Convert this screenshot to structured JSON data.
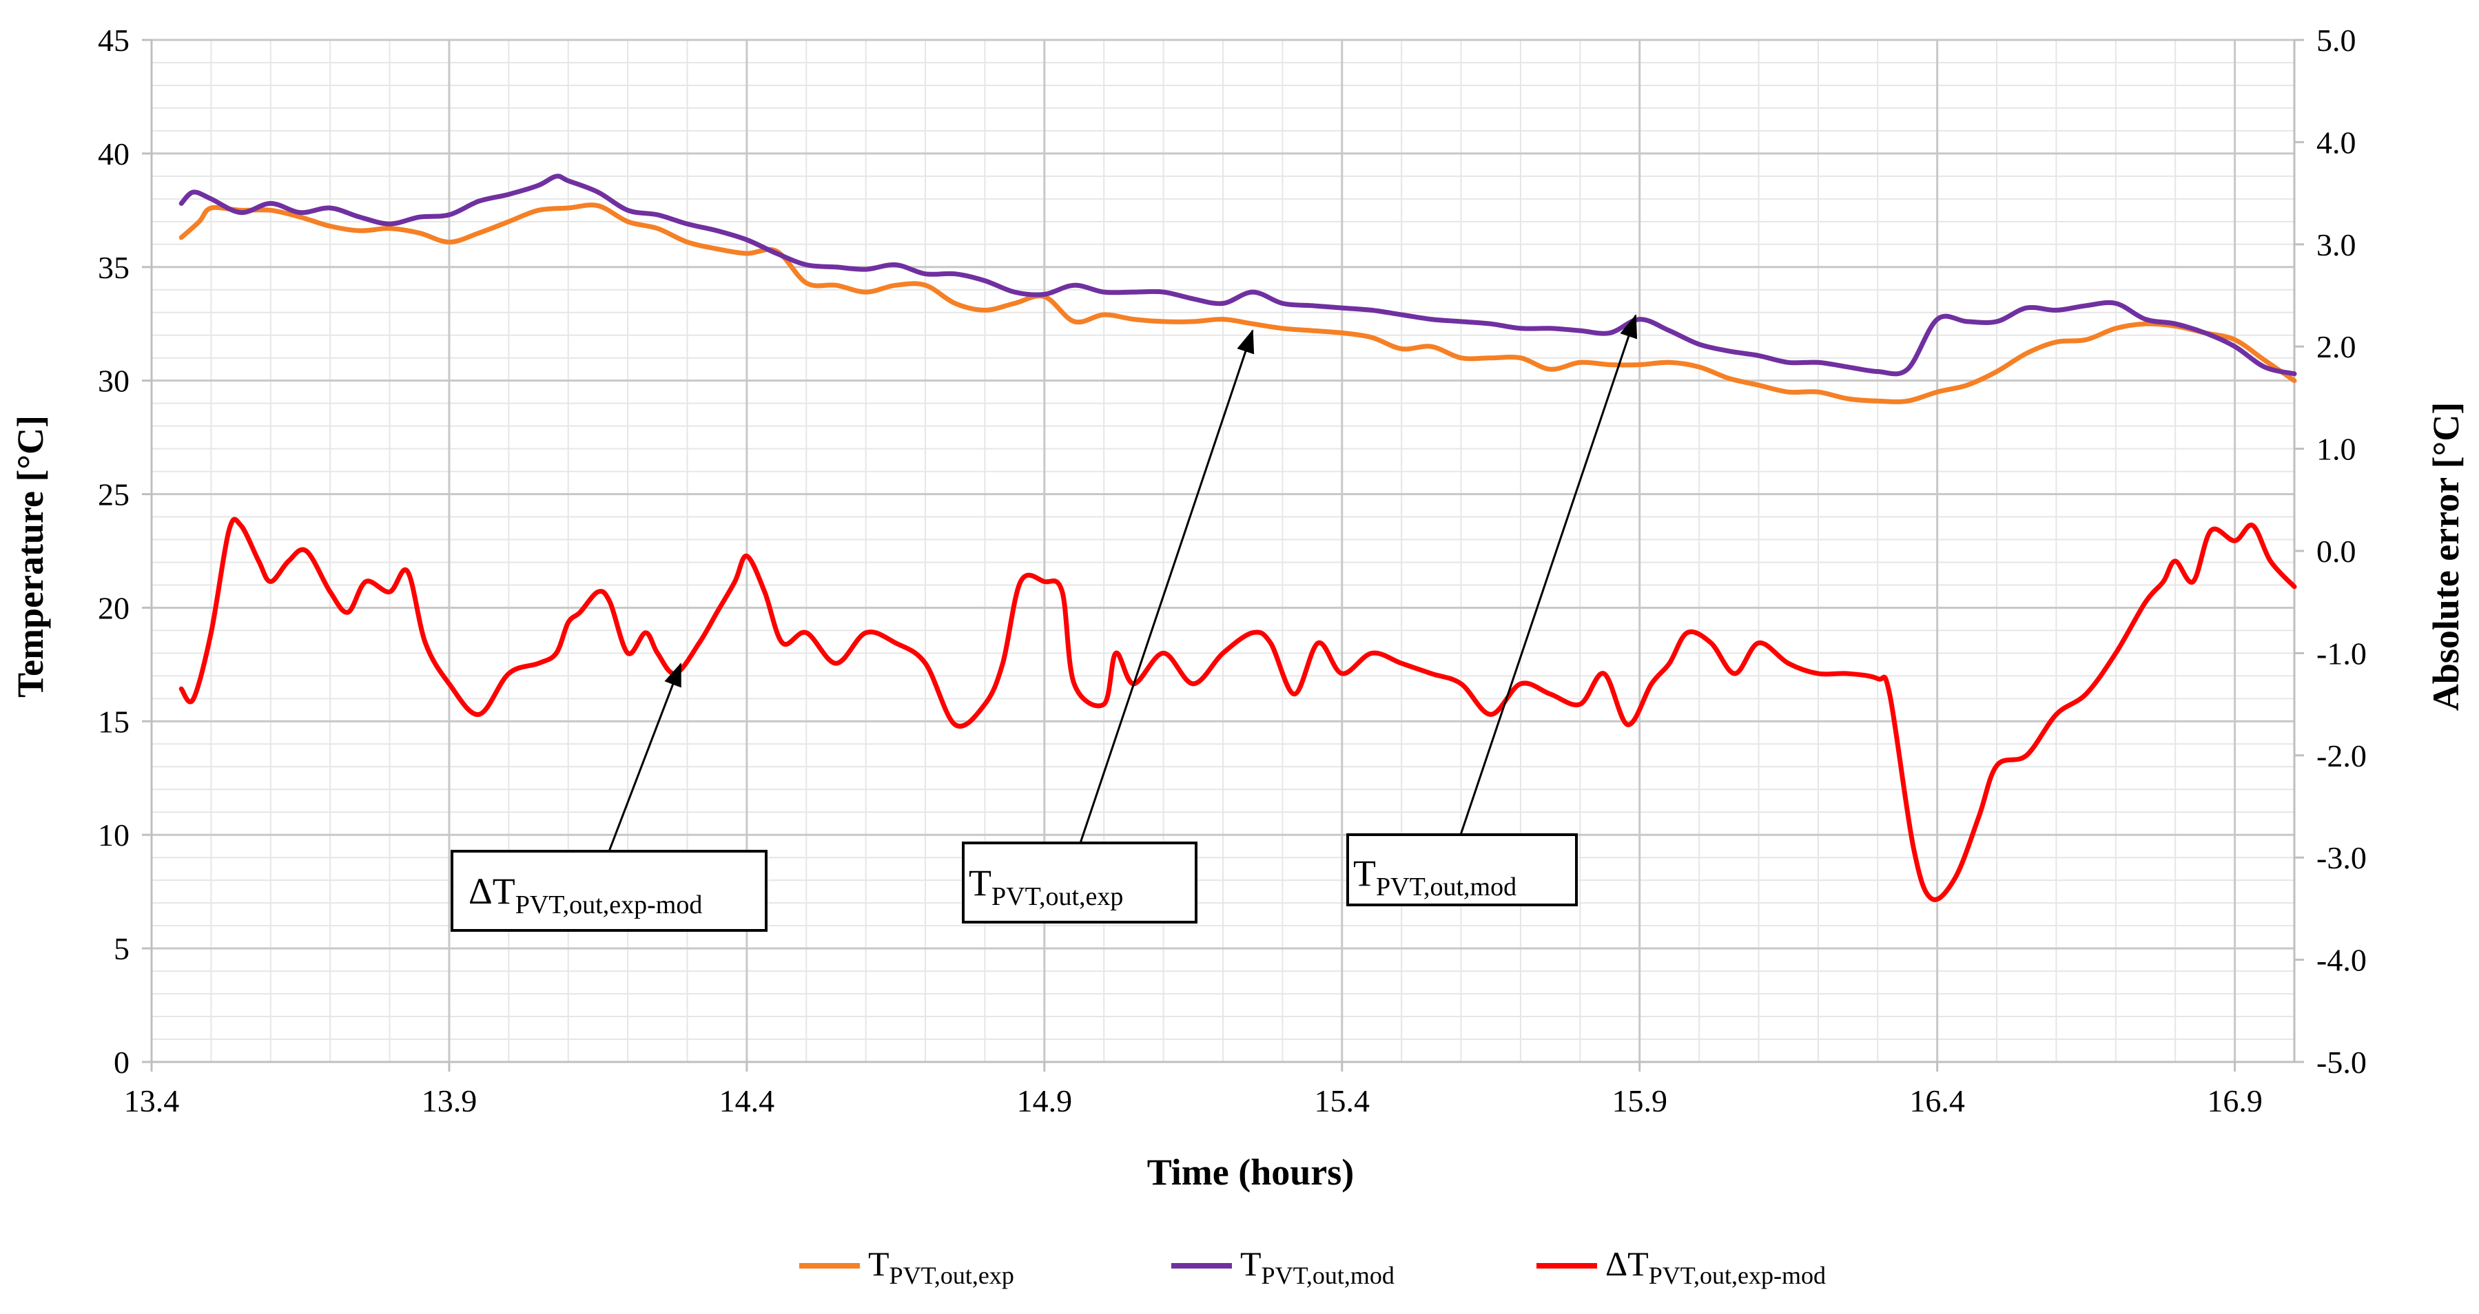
{
  "chart_data": {
    "type": "line",
    "title": "",
    "xlabel": "Time (hours)",
    "ylabel_left": "Temperature [°C]",
    "ylabel_right": "Absolute error [°C]",
    "xlim": [
      13.4,
      17.0
    ],
    "ylim_left": [
      0,
      45
    ],
    "ylim_right": [
      -5.0,
      5.0
    ],
    "x_ticks": [
      "13.4",
      "13.9",
      "14.4",
      "14.9",
      "15.4",
      "15.9",
      "16.4",
      "16.9"
    ],
    "y_left_ticks": [
      "0",
      "5",
      "10",
      "15",
      "20",
      "25",
      "30",
      "35",
      "40",
      "45"
    ],
    "y_right_ticks": [
      "-5.0",
      "-4.0",
      "-3.0",
      "-2.0",
      "-1.0",
      "0.0",
      "1.0",
      "2.0",
      "3.0",
      "4.0",
      "5.0"
    ],
    "grid": true,
    "legend_position": "bottom",
    "series": [
      {
        "id": "exp",
        "legend_main": "T",
        "legend_sub": "PVT,out,exp",
        "color": "#F58025",
        "axis": "left",
        "points": [
          [
            13.45,
            36.3
          ],
          [
            13.48,
            37.0
          ],
          [
            13.5,
            37.6
          ],
          [
            13.55,
            37.5
          ],
          [
            13.6,
            37.5
          ],
          [
            13.65,
            37.2
          ],
          [
            13.7,
            36.8
          ],
          [
            13.75,
            36.6
          ],
          [
            13.8,
            36.7
          ],
          [
            13.85,
            36.5
          ],
          [
            13.9,
            36.1
          ],
          [
            13.95,
            36.5
          ],
          [
            14.0,
            37.0
          ],
          [
            14.05,
            37.5
          ],
          [
            14.1,
            37.6
          ],
          [
            14.15,
            37.7
          ],
          [
            14.2,
            37.0
          ],
          [
            14.25,
            36.7
          ],
          [
            14.3,
            36.1
          ],
          [
            14.35,
            35.8
          ],
          [
            14.4,
            35.6
          ],
          [
            14.45,
            35.7
          ],
          [
            14.5,
            34.3
          ],
          [
            14.55,
            34.2
          ],
          [
            14.6,
            33.9
          ],
          [
            14.65,
            34.2
          ],
          [
            14.7,
            34.2
          ],
          [
            14.75,
            33.4
          ],
          [
            14.8,
            33.1
          ],
          [
            14.85,
            33.4
          ],
          [
            14.9,
            33.7
          ],
          [
            14.95,
            32.6
          ],
          [
            15.0,
            32.9
          ],
          [
            15.05,
            32.7
          ],
          [
            15.1,
            32.6
          ],
          [
            15.15,
            32.6
          ],
          [
            15.2,
            32.7
          ],
          [
            15.25,
            32.5
          ],
          [
            15.3,
            32.3
          ],
          [
            15.35,
            32.2
          ],
          [
            15.4,
            32.1
          ],
          [
            15.45,
            31.9
          ],
          [
            15.5,
            31.4
          ],
          [
            15.55,
            31.5
          ],
          [
            15.6,
            31.0
          ],
          [
            15.65,
            31.0
          ],
          [
            15.7,
            31.0
          ],
          [
            15.75,
            30.5
          ],
          [
            15.8,
            30.8
          ],
          [
            15.85,
            30.7
          ],
          [
            15.9,
            30.7
          ],
          [
            15.95,
            30.8
          ],
          [
            16.0,
            30.6
          ],
          [
            16.05,
            30.1
          ],
          [
            16.1,
            29.8
          ],
          [
            16.15,
            29.5
          ],
          [
            16.2,
            29.5
          ],
          [
            16.25,
            29.2
          ],
          [
            16.3,
            29.1
          ],
          [
            16.35,
            29.1
          ],
          [
            16.4,
            29.5
          ],
          [
            16.45,
            29.8
          ],
          [
            16.5,
            30.4
          ],
          [
            16.55,
            31.2
          ],
          [
            16.6,
            31.7
          ],
          [
            16.65,
            31.8
          ],
          [
            16.7,
            32.3
          ],
          [
            16.75,
            32.5
          ],
          [
            16.8,
            32.4
          ],
          [
            16.85,
            32.1
          ],
          [
            16.9,
            31.8
          ],
          [
            16.95,
            30.9
          ],
          [
            17.0,
            30.0
          ]
        ]
      },
      {
        "id": "mod",
        "legend_main": "T",
        "legend_sub": "PVT,out,mod",
        "color": "#7030A0",
        "axis": "left",
        "points": [
          [
            13.45,
            37.8
          ],
          [
            13.47,
            38.3
          ],
          [
            13.5,
            38.0
          ],
          [
            13.55,
            37.4
          ],
          [
            13.6,
            37.8
          ],
          [
            13.65,
            37.4
          ],
          [
            13.7,
            37.6
          ],
          [
            13.75,
            37.2
          ],
          [
            13.8,
            36.9
          ],
          [
            13.85,
            37.2
          ],
          [
            13.9,
            37.3
          ],
          [
            13.95,
            37.9
          ],
          [
            14.0,
            38.2
          ],
          [
            14.05,
            38.6
          ],
          [
            14.08,
            39.0
          ],
          [
            14.1,
            38.8
          ],
          [
            14.15,
            38.3
          ],
          [
            14.2,
            37.5
          ],
          [
            14.25,
            37.3
          ],
          [
            14.3,
            36.9
          ],
          [
            14.35,
            36.6
          ],
          [
            14.4,
            36.2
          ],
          [
            14.45,
            35.6
          ],
          [
            14.5,
            35.1
          ],
          [
            14.55,
            35.0
          ],
          [
            14.6,
            34.9
          ],
          [
            14.65,
            35.1
          ],
          [
            14.7,
            34.7
          ],
          [
            14.75,
            34.7
          ],
          [
            14.8,
            34.4
          ],
          [
            14.85,
            33.9
          ],
          [
            14.9,
            33.8
          ],
          [
            14.95,
            34.2
          ],
          [
            15.0,
            33.9
          ],
          [
            15.05,
            33.9
          ],
          [
            15.1,
            33.9
          ],
          [
            15.15,
            33.6
          ],
          [
            15.2,
            33.4
          ],
          [
            15.25,
            33.9
          ],
          [
            15.3,
            33.4
          ],
          [
            15.35,
            33.3
          ],
          [
            15.4,
            33.2
          ],
          [
            15.45,
            33.1
          ],
          [
            15.5,
            32.9
          ],
          [
            15.55,
            32.7
          ],
          [
            15.6,
            32.6
          ],
          [
            15.65,
            32.5
          ],
          [
            15.7,
            32.3
          ],
          [
            15.75,
            32.3
          ],
          [
            15.8,
            32.2
          ],
          [
            15.85,
            32.1
          ],
          [
            15.9,
            32.7
          ],
          [
            15.95,
            32.2
          ],
          [
            16.0,
            31.6
          ],
          [
            16.05,
            31.3
          ],
          [
            16.1,
            31.1
          ],
          [
            16.15,
            30.8
          ],
          [
            16.2,
            30.8
          ],
          [
            16.25,
            30.6
          ],
          [
            16.3,
            30.4
          ],
          [
            16.35,
            30.5
          ],
          [
            16.4,
            32.7
          ],
          [
            16.45,
            32.6
          ],
          [
            16.5,
            32.6
          ],
          [
            16.55,
            33.2
          ],
          [
            16.6,
            33.1
          ],
          [
            16.65,
            33.3
          ],
          [
            16.7,
            33.4
          ],
          [
            16.75,
            32.7
          ],
          [
            16.8,
            32.5
          ],
          [
            16.85,
            32.1
          ],
          [
            16.9,
            31.5
          ],
          [
            16.95,
            30.6
          ],
          [
            17.0,
            30.3
          ]
        ]
      },
      {
        "id": "delta",
        "legend_main": "ΔT",
        "legend_sub": "PVT,out,exp-mod",
        "color": "#FF0000",
        "axis": "right",
        "points": [
          [
            13.45,
            -1.35
          ],
          [
            13.47,
            -1.45
          ],
          [
            13.5,
            -0.8
          ],
          [
            13.53,
            0.2
          ],
          [
            13.55,
            0.25
          ],
          [
            13.58,
            -0.1
          ],
          [
            13.6,
            -0.3
          ],
          [
            13.63,
            -0.1
          ],
          [
            13.66,
            -0.0
          ],
          [
            13.7,
            -0.4
          ],
          [
            13.73,
            -0.6
          ],
          [
            13.76,
            -0.3
          ],
          [
            13.8,
            -0.4
          ],
          [
            13.83,
            -0.2
          ],
          [
            13.86,
            -0.9
          ],
          [
            13.9,
            -1.3
          ],
          [
            13.95,
            -1.6
          ],
          [
            14.0,
            -1.2
          ],
          [
            14.05,
            -1.1
          ],
          [
            14.08,
            -1.0
          ],
          [
            14.1,
            -0.7
          ],
          [
            14.12,
            -0.6
          ],
          [
            14.15,
            -0.4
          ],
          [
            14.17,
            -0.5
          ],
          [
            14.2,
            -1.0
          ],
          [
            14.23,
            -0.8
          ],
          [
            14.25,
            -1.0
          ],
          [
            14.28,
            -1.2
          ],
          [
            14.32,
            -0.9
          ],
          [
            14.35,
            -0.6
          ],
          [
            14.38,
            -0.3
          ],
          [
            14.4,
            -0.05
          ],
          [
            14.43,
            -0.4
          ],
          [
            14.46,
            -0.9
          ],
          [
            14.5,
            -0.8
          ],
          [
            14.55,
            -1.1
          ],
          [
            14.6,
            -0.8
          ],
          [
            14.65,
            -0.9
          ],
          [
            14.7,
            -1.1
          ],
          [
            14.75,
            -1.7
          ],
          [
            14.8,
            -1.5
          ],
          [
            14.83,
            -1.1
          ],
          [
            14.86,
            -0.3
          ],
          [
            14.9,
            -0.3
          ],
          [
            14.93,
            -0.4
          ],
          [
            14.95,
            -1.3
          ],
          [
            15.0,
            -1.5
          ],
          [
            15.02,
            -1.0
          ],
          [
            15.05,
            -1.3
          ],
          [
            15.1,
            -1.0
          ],
          [
            15.15,
            -1.3
          ],
          [
            15.2,
            -1.0
          ],
          [
            15.25,
            -0.8
          ],
          [
            15.28,
            -0.9
          ],
          [
            15.32,
            -1.4
          ],
          [
            15.36,
            -0.9
          ],
          [
            15.4,
            -1.2
          ],
          [
            15.45,
            -1.0
          ],
          [
            15.5,
            -1.1
          ],
          [
            15.55,
            -1.2
          ],
          [
            15.6,
            -1.3
          ],
          [
            15.65,
            -1.6
          ],
          [
            15.7,
            -1.3
          ],
          [
            15.75,
            -1.4
          ],
          [
            15.8,
            -1.5
          ],
          [
            15.84,
            -1.2
          ],
          [
            15.88,
            -1.7
          ],
          [
            15.92,
            -1.3
          ],
          [
            15.95,
            -1.1
          ],
          [
            15.98,
            -0.8
          ],
          [
            16.02,
            -0.9
          ],
          [
            16.06,
            -1.2
          ],
          [
            16.1,
            -0.9
          ],
          [
            16.15,
            -1.1
          ],
          [
            16.2,
            -1.2
          ],
          [
            16.25,
            -1.2
          ],
          [
            16.3,
            -1.25
          ],
          [
            16.32,
            -1.4
          ],
          [
            16.36,
            -2.9
          ],
          [
            16.39,
            -3.4
          ],
          [
            16.43,
            -3.2
          ],
          [
            16.47,
            -2.6
          ],
          [
            16.5,
            -2.1
          ],
          [
            16.55,
            -2.0
          ],
          [
            16.6,
            -1.6
          ],
          [
            16.65,
            -1.4
          ],
          [
            16.7,
            -1.0
          ],
          [
            16.75,
            -0.5
          ],
          [
            16.78,
            -0.3
          ],
          [
            16.8,
            -0.1
          ],
          [
            16.83,
            -0.3
          ],
          [
            16.86,
            0.2
          ],
          [
            16.9,
            0.1
          ],
          [
            16.93,
            0.25
          ],
          [
            16.96,
            -0.1
          ],
          [
            17.0,
            -0.35
          ]
        ]
      }
    ],
    "annotations": [
      {
        "id": "ann-delta",
        "main": "ΔT",
        "sub": "PVT,out,exp-mod"
      },
      {
        "id": "ann-exp",
        "main": "T",
        "sub": "PVT,out,exp"
      },
      {
        "id": "ann-mod",
        "main": "T",
        "sub": "PVT,out,mod"
      }
    ]
  }
}
